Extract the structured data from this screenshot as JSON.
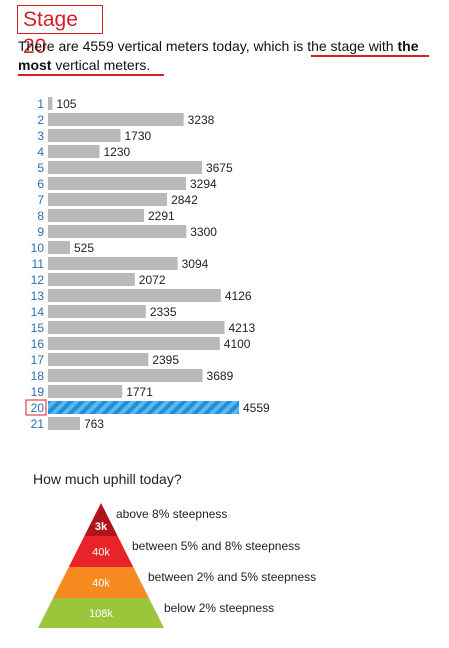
{
  "stage_title": "Stage 20",
  "intro": {
    "p1": "There are 4559 vertical meters today, which is ",
    "p2": "the stage with ",
    "p3": "the most",
    "p4": " vertical meters."
  },
  "chart_data": {
    "type": "bar",
    "orientation": "horizontal",
    "categories": [
      "1",
      "2",
      "3",
      "4",
      "5",
      "6",
      "7",
      "8",
      "9",
      "10",
      "11",
      "12",
      "13",
      "14",
      "15",
      "16",
      "17",
      "18",
      "19",
      "20",
      "21"
    ],
    "values": [
      105,
      3238,
      1730,
      1230,
      3675,
      3294,
      2842,
      2291,
      3300,
      525,
      3094,
      2072,
      4126,
      2335,
      4213,
      4100,
      2395,
      3689,
      1771,
      4559,
      763
    ],
    "highlight_category": "20",
    "colors": {
      "bar": "#b9b9b9",
      "highlight": "#1f90d8",
      "highlight_stripe": "#5fb7ef",
      "category_label": "#2a6fb0",
      "highlight_box": "#d42027"
    }
  },
  "uphill": {
    "title": "How much uphill today?",
    "levels": [
      {
        "value": "3k",
        "label": "above 8% steepness",
        "color": "#b0141a"
      },
      {
        "value": "40k",
        "label": "between 5% and 8% steepness",
        "color": "#e8232a"
      },
      {
        "value": "40k",
        "label": "between 2% and 5% steepness",
        "color": "#f58a1f"
      },
      {
        "value": "108k",
        "label": "below 2% steepness",
        "color": "#9bc63c"
      }
    ]
  }
}
